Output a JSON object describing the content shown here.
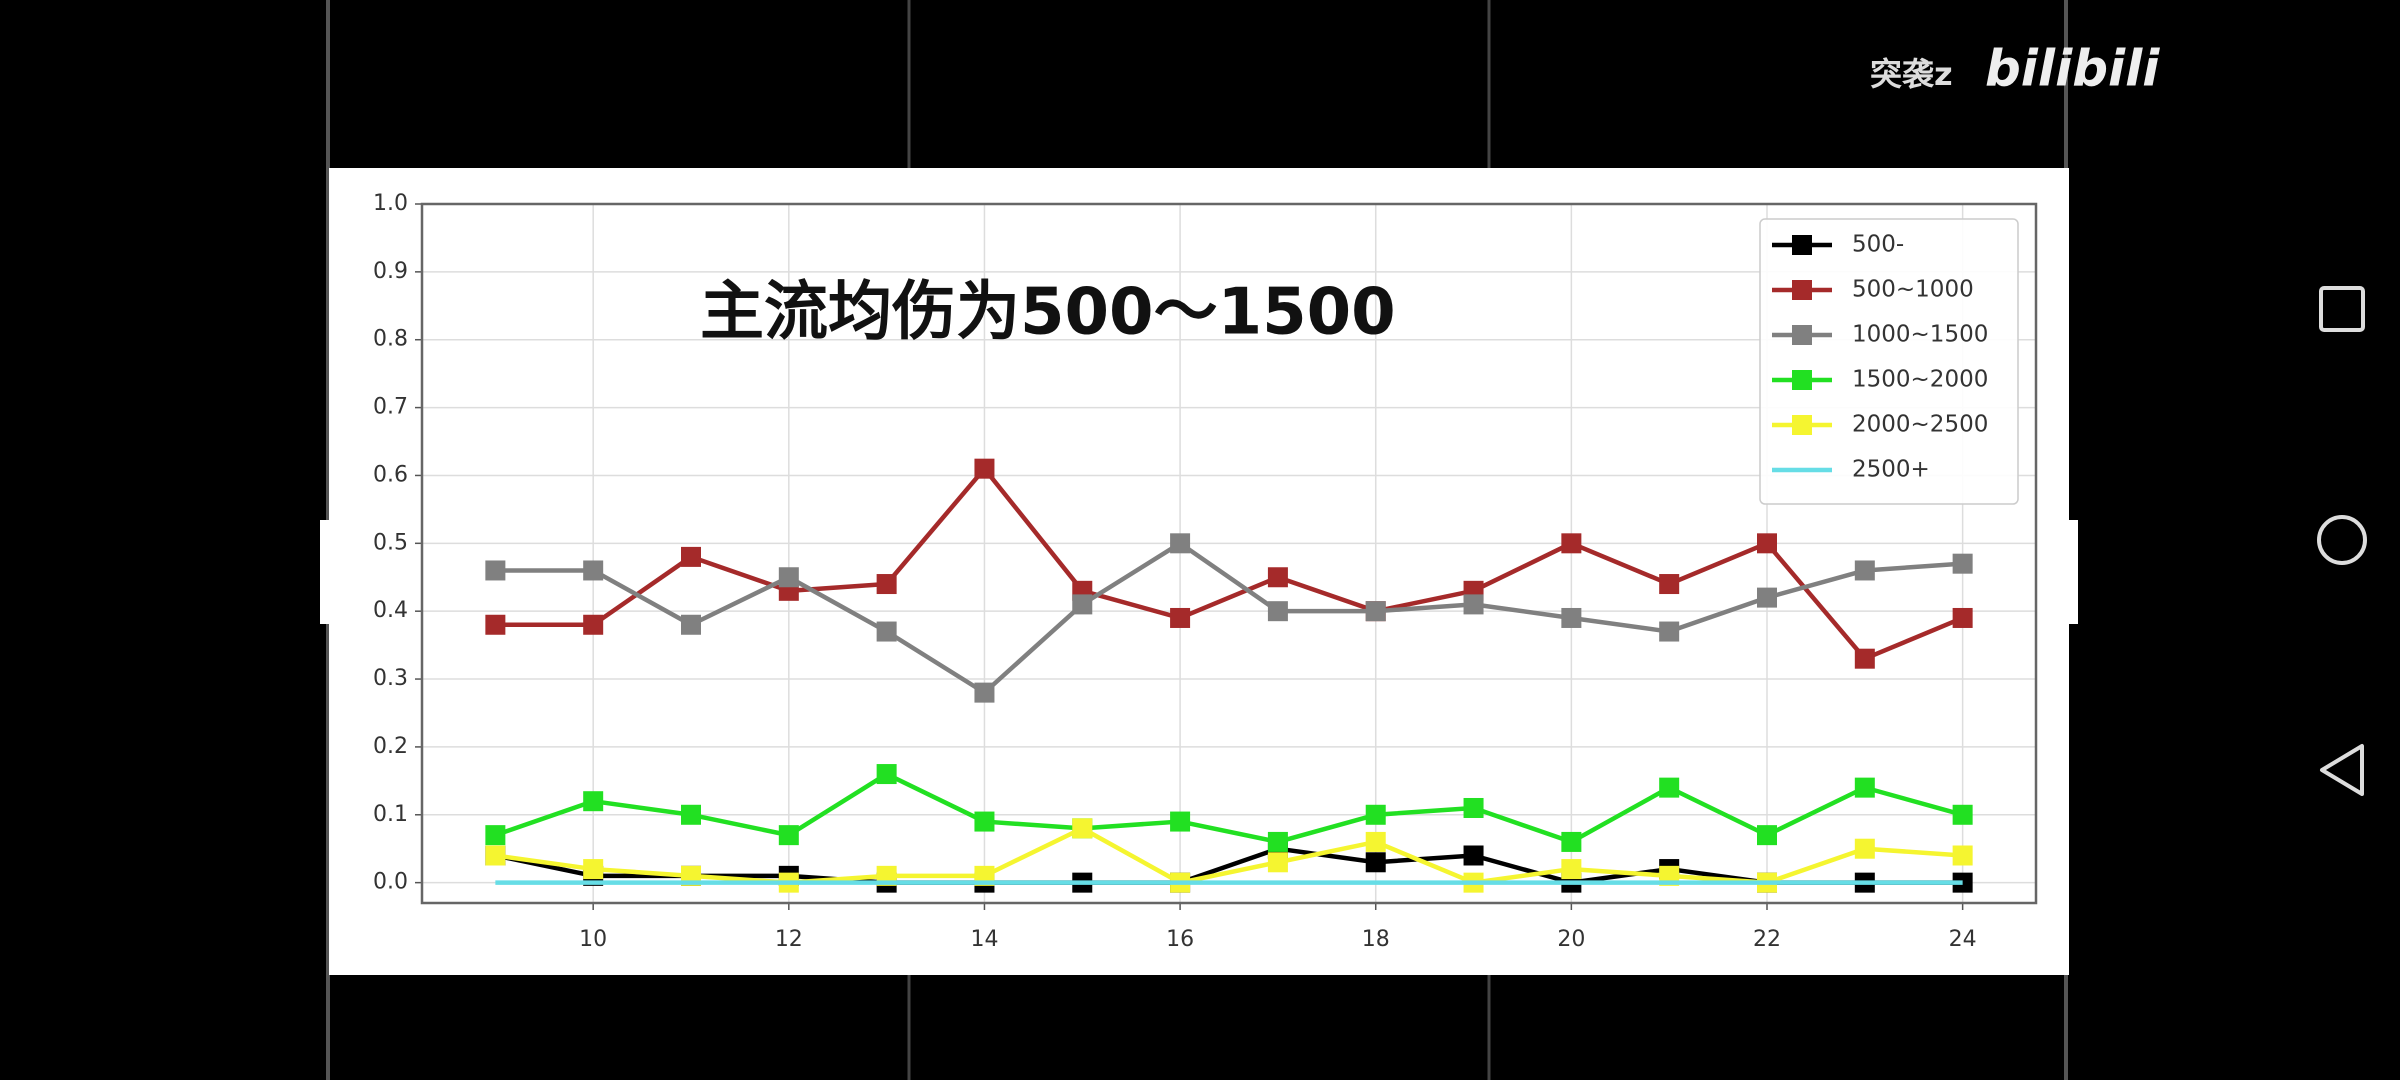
{
  "watermark": {
    "user": "突袭z",
    "logo": "bilibili"
  },
  "chart_data": {
    "type": "line",
    "annotation": "主流均伤为500～1500",
    "x": [
      9,
      10,
      11,
      12,
      13,
      14,
      15,
      16,
      17,
      18,
      19,
      20,
      21,
      22,
      23,
      24
    ],
    "xlim": [
      8.25,
      24.75
    ],
    "xticks": [
      10,
      12,
      14,
      16,
      18,
      20,
      22,
      24
    ],
    "ylim": [
      -0.03,
      1.0
    ],
    "yticks": [
      {
        "value": 0,
        "label": "0.0"
      },
      0.1,
      0.2,
      0.3,
      0.4,
      0.5,
      0.6,
      0.7,
      0.8,
      0.9,
      {
        "value": 1,
        "label": "1.0"
      }
    ],
    "grid": true,
    "legend": "upper right",
    "series": [
      {
        "name": "500-",
        "color": "#000000",
        "markers": true,
        "values": [
          0.04,
          0.01,
          0.01,
          0.01,
          0.0,
          0.0,
          0.0,
          0.0,
          0.05,
          0.03,
          0.04,
          0.0,
          0.02,
          0.0,
          0.0,
          0.0
        ]
      },
      {
        "name": "500~1000",
        "color": "#a52a2a",
        "markers": true,
        "values": [
          0.38,
          0.38,
          0.48,
          0.43,
          0.44,
          0.61,
          0.43,
          0.39,
          0.45,
          0.4,
          0.43,
          0.5,
          0.44,
          0.5,
          0.33,
          0.39
        ]
      },
      {
        "name": "1000~1500",
        "color": "#808080",
        "markers": true,
        "values": [
          0.46,
          0.46,
          0.38,
          0.45,
          0.37,
          0.28,
          0.41,
          0.5,
          0.4,
          0.4,
          0.41,
          0.39,
          0.37,
          0.42,
          0.46,
          0.47
        ]
      },
      {
        "name": "1500~2000",
        "color": "#22e022",
        "markers": true,
        "values": [
          0.07,
          0.12,
          0.1,
          0.07,
          0.16,
          0.09,
          0.08,
          0.09,
          0.06,
          0.1,
          0.11,
          0.06,
          0.14,
          0.07,
          0.14,
          0.1
        ]
      },
      {
        "name": "2000~2500",
        "color": "#f5f530",
        "markers": true,
        "values": [
          0.04,
          0.02,
          0.01,
          0.0,
          0.01,
          0.01,
          0.08,
          0.0,
          0.03,
          0.06,
          0.0,
          0.02,
          0.01,
          0.0,
          0.05,
          0.04
        ]
      },
      {
        "name": "2500+",
        "color": "#66dde6",
        "markers": false,
        "values": [
          0,
          0,
          0,
          0,
          0,
          0,
          0,
          0,
          0,
          0,
          0,
          0,
          0,
          0,
          0,
          0
        ]
      }
    ]
  }
}
